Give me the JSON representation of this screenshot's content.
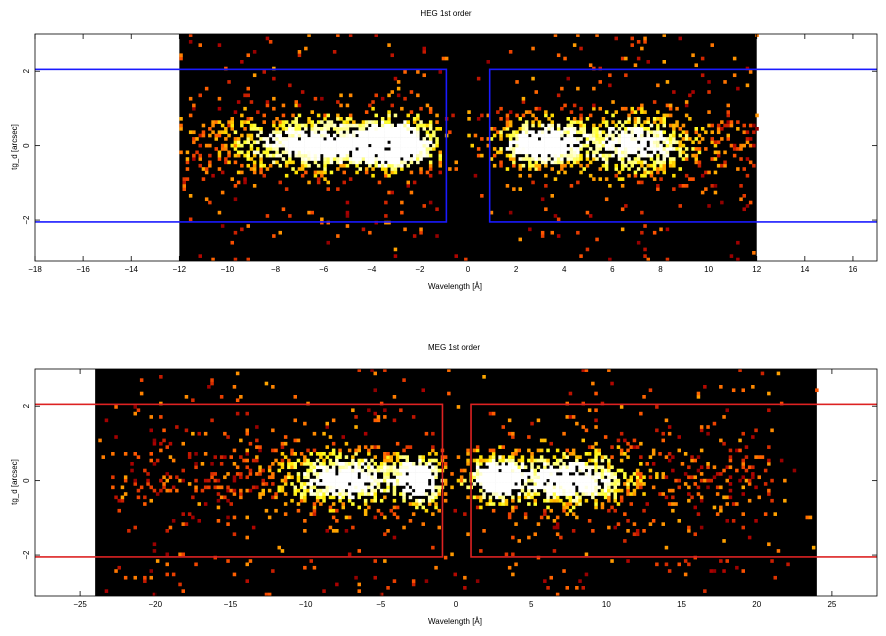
{
  "chart_data": [
    {
      "type": "heatmap",
      "title": "HEG 1st order",
      "xlabel": "Wavelength [Å]",
      "ylabel": "tg_d [arcsec]",
      "xlim": [
        -18,
        17
      ],
      "ylim": [
        -3.1,
        3.0
      ],
      "x_ticks": [
        -18,
        -16,
        -14,
        -12,
        -10,
        -8,
        -6,
        -4,
        -2,
        0,
        2,
        4,
        6,
        8,
        10,
        12,
        14,
        16
      ],
      "y_ticks": [
        -2,
        0,
        2
      ],
      "tick_labels_x": [
        "−18",
        "−16",
        "−14",
        "−12",
        "−10",
        "−8",
        "−6",
        "−4",
        "−2",
        "0",
        "2",
        "4",
        "6",
        "8",
        "10",
        "12",
        "14",
        "16"
      ],
      "tick_labels_y": [
        "−2",
        "0",
        "2"
      ],
      "image_extent_x": [
        -12,
        12
      ],
      "grid": false,
      "colormap": "hot",
      "box_color": "#1a1aff",
      "extraction_boxes": [
        {
          "x": [
            -21,
            -0.9
          ],
          "y": [
            -2.05,
            2.05
          ]
        },
        {
          "x": [
            0.9,
            21
          ],
          "y": [
            -2.05,
            2.05
          ]
        }
      ],
      "emission_blobs": [
        {
          "x_center": -6.5,
          "x_sigma": 2.2,
          "y_sigma": 0.45,
          "peak": 0.85
        },
        {
          "x_center": -3.0,
          "x_sigma": 1.1,
          "y_sigma": 0.45,
          "peak": 1.0
        },
        {
          "x_center": 3.0,
          "x_sigma": 1.2,
          "y_sigma": 0.4,
          "peak": 1.0
        },
        {
          "x_center": 7.0,
          "x_sigma": 1.5,
          "y_sigma": 0.5,
          "peak": 0.8
        }
      ],
      "emission_range": [
        {
          "x": [
            -12,
            -1.2
          ]
        },
        {
          "x": [
            1.2,
            12
          ]
        }
      ]
    },
    {
      "type": "heatmap",
      "title": "MEG 1st order",
      "xlabel": "Wavelength [Å]",
      "ylabel": "tg_d [arcsec]",
      "xlim": [
        -28,
        28
      ],
      "ylim": [
        -3.1,
        3.0
      ],
      "x_ticks": [
        -25,
        -20,
        -15,
        -10,
        -5,
        0,
        5,
        10,
        15,
        20,
        25
      ],
      "y_ticks": [
        -2,
        0,
        2
      ],
      "tick_labels_x": [
        "−25",
        "−20",
        "−15",
        "−10",
        "−5",
        "0",
        "5",
        "10",
        "15",
        "20",
        "25"
      ],
      "tick_labels_y": [
        "−2",
        "0",
        "2"
      ],
      "image_extent_x": [
        -24,
        24
      ],
      "grid": false,
      "colormap": "hot",
      "box_color": "#dd2222",
      "extraction_boxes": [
        {
          "x": [
            -32,
            -0.9
          ],
          "y": [
            -2.05,
            2.05
          ]
        },
        {
          "x": [
            1.0,
            32
          ],
          "y": [
            -2.05,
            2.05
          ]
        }
      ],
      "emission_blobs": [
        {
          "x_center": -7.5,
          "x_sigma": 2.5,
          "y_sigma": 0.45,
          "peak": 0.9
        },
        {
          "x_center": -2.5,
          "x_sigma": 1.0,
          "y_sigma": 0.45,
          "peak": 0.95
        },
        {
          "x_center": 2.5,
          "x_sigma": 1.2,
          "y_sigma": 0.4,
          "peak": 1.0
        },
        {
          "x_center": 7.5,
          "x_sigma": 2.5,
          "y_sigma": 0.45,
          "peak": 0.9
        }
      ],
      "emission_range": [
        {
          "x": [
            -23,
            -1.2
          ]
        },
        {
          "x": [
            1.2,
            21
          ]
        }
      ]
    }
  ]
}
